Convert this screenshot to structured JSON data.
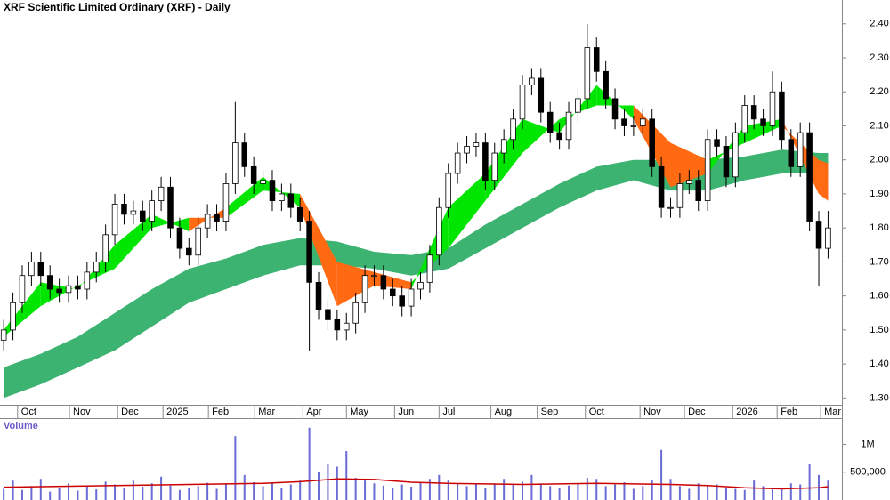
{
  "chart_data": [
    {
      "type": "candlestick",
      "title": "XRF Scientific Limited Ordinary (XRF) - Daily",
      "xlim": [
        -0.4,
        90.4
      ],
      "ylim": [
        1.28,
        2.47
      ],
      "xticks": [
        {
          "value": 1.5,
          "label": "Oct"
        },
        {
          "value": 7.1,
          "label": "Nov"
        },
        {
          "value": 12.3,
          "label": "Dec"
        },
        {
          "value": 17.2,
          "label": "2025"
        },
        {
          "value": 22.1,
          "label": "Feb"
        },
        {
          "value": 27.1,
          "label": "Mar"
        },
        {
          "value": 32.3,
          "label": "Apr"
        },
        {
          "value": 37,
          "label": "May"
        },
        {
          "value": 42.2,
          "label": "Jun"
        },
        {
          "value": 47,
          "label": "Jul"
        },
        {
          "value": 52.6,
          "label": "Aug"
        },
        {
          "value": 57.6,
          "label": "Sep"
        },
        {
          "value": 62.8,
          "label": "Oct"
        },
        {
          "value": 68.7,
          "label": "Nov"
        },
        {
          "value": 73.5,
          "label": "Dec"
        },
        {
          "value": 78.7,
          "label": "2026"
        },
        {
          "value": 83.5,
          "label": "Feb"
        },
        {
          "value": 88.2,
          "label": "Mar"
        }
      ],
      "yticks": [
        {
          "value": 1.3,
          "label": "1.30"
        },
        {
          "value": 1.4,
          "label": "1.40"
        },
        {
          "value": 1.5,
          "label": "1.50"
        },
        {
          "value": 1.6,
          "label": "1.60"
        },
        {
          "value": 1.7,
          "label": "1.70"
        },
        {
          "value": 1.8,
          "label": "1.80"
        },
        {
          "value": 1.9,
          "label": "1.90"
        },
        {
          "value": 2.0,
          "label": "2.00"
        },
        {
          "value": 2.1,
          "label": "2.10"
        },
        {
          "value": 2.2,
          "label": "2.20"
        },
        {
          "value": 2.3,
          "label": "2.30"
        },
        {
          "value": 2.4,
          "label": "2.40"
        }
      ],
      "up_color": "#ffffff",
      "down_color": "#000000",
      "open": [
        1.47,
        1.5,
        1.58,
        1.66,
        1.7,
        1.66,
        1.62,
        1.61,
        1.63,
        1.62,
        1.67,
        1.7,
        1.78,
        1.87,
        1.84,
        1.85,
        1.82,
        1.88,
        1.92,
        1.8,
        1.74,
        1.72,
        1.8,
        1.84,
        1.82,
        1.93,
        2.05,
        1.98,
        1.93,
        1.94,
        1.88,
        1.9,
        1.86,
        1.82,
        1.64,
        1.56,
        1.53,
        1.5,
        1.52,
        1.58,
        1.66,
        1.66,
        1.62,
        1.6,
        1.57,
        1.62,
        1.64,
        1.72,
        1.86,
        1.96,
        2.02,
        2.04,
        2.05,
        1.94,
        2.02,
        2.06,
        2.12,
        2.22,
        2.24,
        2.14,
        2.08,
        2.06,
        2.14,
        2.18,
        2.33,
        2.26,
        2.18,
        2.12,
        2.1,
        2.1,
        2.12,
        1.98,
        1.86,
        1.86,
        1.93,
        1.94,
        1.88,
        2.06,
        2.04,
        1.95,
        2.08,
        2.16,
        2.12,
        2.1,
        2.2,
        2.06,
        1.98,
        2.08,
        1.82,
        1.74
      ],
      "high": [
        1.53,
        1.61,
        1.69,
        1.73,
        1.73,
        1.69,
        1.65,
        1.66,
        1.66,
        1.7,
        1.73,
        1.81,
        1.9,
        1.9,
        1.88,
        1.88,
        1.91,
        1.95,
        1.95,
        1.83,
        1.77,
        1.83,
        1.87,
        1.87,
        1.96,
        2.17,
        2.08,
        2.01,
        1.97,
        1.97,
        1.93,
        1.93,
        1.89,
        1.85,
        1.67,
        1.59,
        1.56,
        1.55,
        1.61,
        1.69,
        1.69,
        1.69,
        1.65,
        1.63,
        1.65,
        1.67,
        1.75,
        1.89,
        1.99,
        2.05,
        2.07,
        2.08,
        2.08,
        2.05,
        2.09,
        2.15,
        2.25,
        2.27,
        2.27,
        2.17,
        2.11,
        2.17,
        2.21,
        2.4,
        2.36,
        2.29,
        2.21,
        2.15,
        2.13,
        2.15,
        2.15,
        2.01,
        1.89,
        1.96,
        1.97,
        1.97,
        2.09,
        2.09,
        2.07,
        2.11,
        2.19,
        2.19,
        2.15,
        2.26,
        2.23,
        2.09,
        2.11,
        2.11,
        1.85,
        1.85
      ],
      "low": [
        1.44,
        1.47,
        1.55,
        1.63,
        1.63,
        1.59,
        1.58,
        1.58,
        1.59,
        1.59,
        1.64,
        1.67,
        1.75,
        1.81,
        1.81,
        1.79,
        1.79,
        1.85,
        1.77,
        1.71,
        1.69,
        1.69,
        1.77,
        1.79,
        1.79,
        1.9,
        1.95,
        1.9,
        1.9,
        1.85,
        1.85,
        1.83,
        1.79,
        1.44,
        1.53,
        1.5,
        1.47,
        1.47,
        1.49,
        1.55,
        1.63,
        1.59,
        1.57,
        1.54,
        1.54,
        1.59,
        1.61,
        1.69,
        1.83,
        1.93,
        1.99,
        2.01,
        1.91,
        1.91,
        1.99,
        2.03,
        2.09,
        2.19,
        2.11,
        2.05,
        2.03,
        2.03,
        2.11,
        2.15,
        2.23,
        2.15,
        2.09,
        2.07,
        2.07,
        2.07,
        1.95,
        1.83,
        1.83,
        1.83,
        1.9,
        1.85,
        1.85,
        2.01,
        1.92,
        1.92,
        2.05,
        2.09,
        2.07,
        2.07,
        2.03,
        1.95,
        1.95,
        1.79,
        1.63,
        1.71
      ],
      "close": [
        1.5,
        1.58,
        1.66,
        1.7,
        1.66,
        1.62,
        1.61,
        1.63,
        1.62,
        1.67,
        1.7,
        1.78,
        1.87,
        1.84,
        1.85,
        1.82,
        1.88,
        1.92,
        1.8,
        1.74,
        1.72,
        1.8,
        1.84,
        1.82,
        1.93,
        2.05,
        1.98,
        1.93,
        1.94,
        1.88,
        1.9,
        1.86,
        1.82,
        1.64,
        1.56,
        1.53,
        1.5,
        1.52,
        1.58,
        1.66,
        1.66,
        1.62,
        1.6,
        1.57,
        1.62,
        1.64,
        1.72,
        1.86,
        1.96,
        2.02,
        2.04,
        2.05,
        1.94,
        2.02,
        2.06,
        2.12,
        2.22,
        2.24,
        2.14,
        2.08,
        2.06,
        2.14,
        2.18,
        2.33,
        2.26,
        2.18,
        2.12,
        2.1,
        2.1,
        2.12,
        1.98,
        1.86,
        1.86,
        1.93,
        1.94,
        1.88,
        2.06,
        2.04,
        1.95,
        2.08,
        2.16,
        2.12,
        2.1,
        2.2,
        2.06,
        1.98,
        2.08,
        1.82,
        1.74,
        1.8
      ],
      "long_band": {
        "color": "#3cb371",
        "x": [
          0,
          4,
          8,
          12,
          16,
          20,
          24,
          28,
          32,
          36,
          40,
          44,
          48,
          52,
          56,
          60,
          64,
          68,
          72,
          76,
          80,
          84,
          88,
          89
        ],
        "upper": [
          1.39,
          1.43,
          1.48,
          1.55,
          1.62,
          1.68,
          1.71,
          1.75,
          1.77,
          1.76,
          1.73,
          1.72,
          1.74,
          1.81,
          1.87,
          1.93,
          1.98,
          2.0,
          2.0,
          2.0,
          2.01,
          2.03,
          2.02,
          2.02
        ],
        "lower": [
          1.3,
          1.34,
          1.39,
          1.44,
          1.51,
          1.58,
          1.62,
          1.66,
          1.69,
          1.69,
          1.68,
          1.66,
          1.68,
          1.74,
          1.8,
          1.86,
          1.91,
          1.94,
          1.91,
          1.91,
          1.94,
          1.96,
          1.96,
          1.95
        ]
      },
      "short_band": {
        "up_color": "#00e600",
        "down_color": "#ff6a13",
        "x": [
          0,
          4,
          8,
          12,
          16,
          20,
          24,
          28,
          32,
          36,
          40,
          44,
          48,
          52,
          56,
          60,
          64,
          68,
          72,
          76,
          80,
          84,
          88,
          89
        ],
        "fast": [
          1.5,
          1.64,
          1.62,
          1.75,
          1.84,
          1.79,
          1.86,
          1.95,
          1.86,
          1.57,
          1.63,
          1.62,
          1.86,
          1.96,
          2.12,
          2.08,
          2.22,
          2.12,
          1.92,
          1.96,
          2.1,
          2.12,
          1.9,
          1.88
        ],
        "slow": [
          1.48,
          1.57,
          1.63,
          1.68,
          1.8,
          1.83,
          1.83,
          1.91,
          1.9,
          1.7,
          1.67,
          1.64,
          1.74,
          1.88,
          2.02,
          2.12,
          2.16,
          2.16,
          2.05,
          2.0,
          2.05,
          2.1,
          2.0,
          1.99
        ]
      }
    },
    {
      "type": "bar",
      "title": "Volume",
      "color": "#6b6bd6",
      "xlim": [
        -0.4,
        90.4
      ],
      "ylim": [
        0,
        1440000
      ],
      "yticks": [
        {
          "value": 500000,
          "label": "500,000"
        },
        {
          "value": 1000000,
          "label": "1M"
        }
      ],
      "values": [
        200000,
        350000,
        180000,
        250000,
        380000,
        150000,
        220000,
        300000,
        170000,
        260000,
        190000,
        330000,
        280000,
        210000,
        350000,
        240000,
        300000,
        420000,
        260000,
        180000,
        220000,
        250000,
        310000,
        200000,
        280000,
        1150000,
        450000,
        320000,
        250000,
        300000,
        220000,
        280000,
        350000,
        1300000,
        500000,
        650000,
        600000,
        880000,
        400000,
        350000,
        300000,
        260000,
        220000,
        280000,
        240000,
        310000,
        380000,
        450000,
        350000,
        300000,
        250000,
        280000,
        220000,
        300000,
        380000,
        290000,
        330000,
        450000,
        300000,
        250000,
        220000,
        260000,
        300000,
        400000,
        380000,
        250000,
        280000,
        320000,
        200000,
        250000,
        350000,
        900000,
        380000,
        250000,
        200000,
        300000,
        250000,
        280000,
        220000,
        200000,
        180000,
        350000,
        250000,
        200000,
        220000,
        300000,
        280000,
        650000,
        450000,
        350000
      ],
      "ma": {
        "color": "#cc0000",
        "x": [
          0,
          4,
          8,
          12,
          16,
          20,
          24,
          28,
          32,
          36,
          40,
          44,
          48,
          52,
          56,
          60,
          64,
          68,
          72,
          76,
          80,
          84,
          88,
          89
        ],
        "values": [
          230000,
          240000,
          250000,
          260000,
          270000,
          280000,
          290000,
          300000,
          330000,
          380000,
          370000,
          320000,
          300000,
          290000,
          280000,
          290000,
          300000,
          290000,
          280000,
          260000,
          220000,
          200000,
          220000,
          240000
        ]
      }
    }
  ]
}
